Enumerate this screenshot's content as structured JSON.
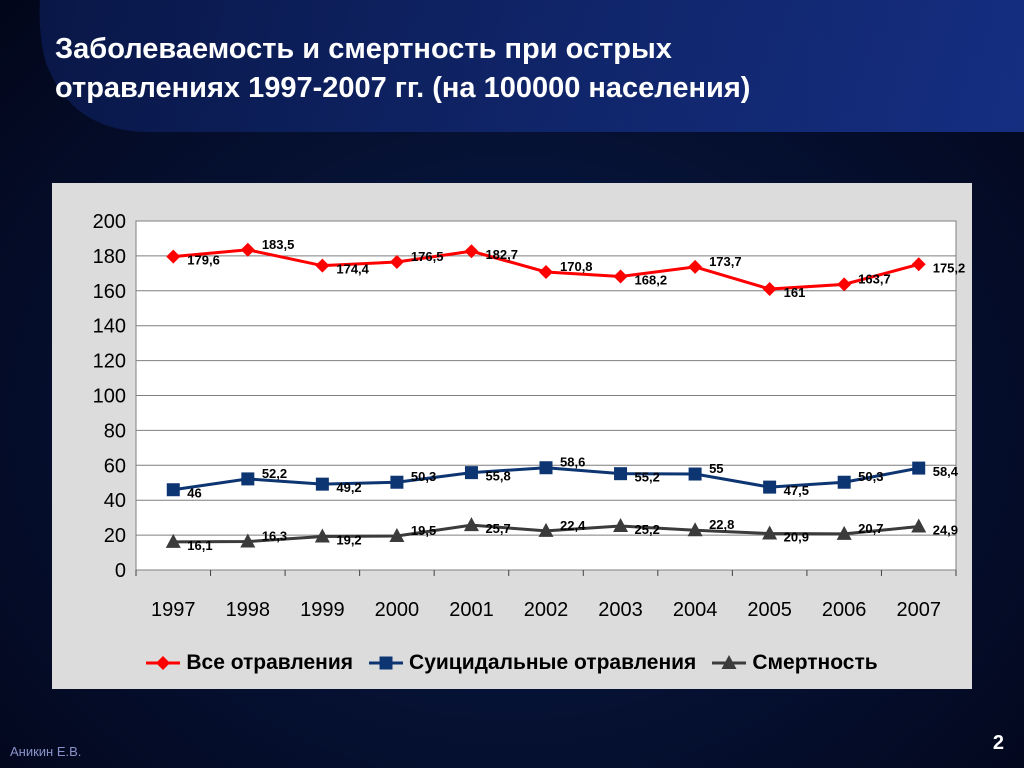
{
  "slide": {
    "title_line1": "Заболеваемость и смертность при острых",
    "title_line2": "отравлениях 1997-2007 гг. (на 100000 населения)",
    "author": "Аникин Е.В.",
    "page_number": "2"
  },
  "colors": {
    "all_poisonings": "#ff0000",
    "suicidal": "#0d3572",
    "mortality": "#3b3b3b"
  },
  "chart_data": {
    "type": "line",
    "title": "",
    "xlabel": "",
    "ylabel": "",
    "categories": [
      "1997",
      "1998",
      "1999",
      "2000",
      "2001",
      "2002",
      "2003",
      "2004",
      "2005",
      "2006",
      "2007"
    ],
    "ylim": [
      0,
      200
    ],
    "yticks": [
      "0",
      "20",
      "40",
      "60",
      "80",
      "100",
      "120",
      "140",
      "160",
      "180",
      "200"
    ],
    "grid": true,
    "legend_position": "bottom",
    "series": [
      {
        "name": "Все отравления",
        "marker": "diamond",
        "values": [
          179.6,
          183.5,
          174.4,
          176.5,
          182.7,
          170.8,
          168.2,
          173.7,
          161,
          163.7,
          175.2
        ],
        "labels": [
          "179,6",
          "183,5",
          "174,4",
          "176,5",
          "182,7",
          "170,8",
          "168,2",
          "173,7",
          "161",
          "163,7",
          "175,2"
        ]
      },
      {
        "name": "Суицидальные отравления",
        "marker": "square",
        "values": [
          46,
          52.2,
          49.2,
          50.3,
          55.8,
          58.6,
          55.2,
          55,
          47.5,
          50.3,
          58.4
        ],
        "labels": [
          "46",
          "52,2",
          "49,2",
          "50,3",
          "55,8",
          "58,6",
          "55,2",
          "55",
          "47,5",
          "50,3",
          "58,4"
        ]
      },
      {
        "name": "Смертность",
        "marker": "triangle",
        "values": [
          16.1,
          16.3,
          19.2,
          19.5,
          25.7,
          22.4,
          25.2,
          22.8,
          20.9,
          20.7,
          24.9
        ],
        "labels": [
          "16,1",
          "16,3",
          "19,2",
          "19,5",
          "25,7",
          "22,4",
          "25,2",
          "22,8",
          "20,9",
          "20,7",
          "24,9"
        ]
      }
    ]
  }
}
